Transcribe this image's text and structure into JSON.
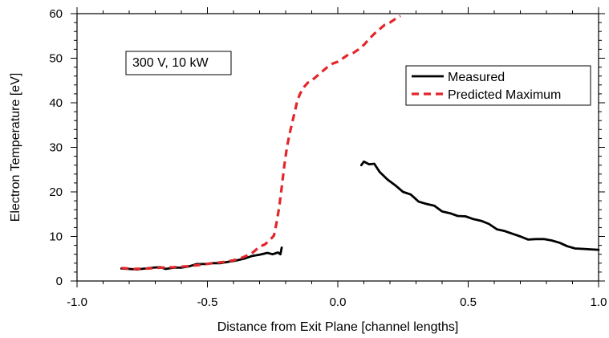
{
  "chart_data": {
    "type": "line",
    "title": "",
    "xlabel": "Distance from Exit Plane [channel lengths]",
    "ylabel": "Electron Temperature [eV]",
    "xlim": [
      -1.0,
      1.0
    ],
    "ylim": [
      0,
      60
    ],
    "xticks": [
      -1.0,
      -0.5,
      0.0,
      0.5,
      1.0
    ],
    "xtick_labels": [
      "-1.0",
      "-0.5",
      "0.0",
      "0.5",
      "1.0"
    ],
    "yticks": [
      0,
      10,
      20,
      30,
      40,
      50,
      60
    ],
    "ytick_labels": [
      "0",
      "10",
      "20",
      "30",
      "40",
      "50",
      "60"
    ],
    "grid": false,
    "legend_position": "top-right",
    "annotation": "300 V, 10 kW",
    "series": [
      {
        "name": "Measured",
        "style": "solid",
        "color": "#000000",
        "segments": [
          {
            "x": [
              -0.83,
              -0.8,
              -0.77,
              -0.74,
              -0.71,
              -0.68,
              -0.66,
              -0.63,
              -0.6,
              -0.57,
              -0.54,
              -0.51,
              -0.48,
              -0.45,
              -0.42,
              -0.39,
              -0.36,
              -0.33,
              -0.3,
              -0.27,
              -0.25,
              -0.23,
              -0.22,
              -0.215
            ],
            "y": [
              2.8,
              2.7,
              2.6,
              2.8,
              3.0,
              3.1,
              2.7,
              3.0,
              3.0,
              3.3,
              3.8,
              3.8,
              4.0,
              4.0,
              4.3,
              4.6,
              5.0,
              5.6,
              5.9,
              6.3,
              6.0,
              6.4,
              6.0,
              7.5
            ]
          },
          {
            "x": [
              0.09,
              0.1,
              0.12,
              0.14,
              0.16,
              0.19,
              0.22,
              0.25,
              0.28,
              0.31,
              0.34,
              0.37,
              0.4,
              0.43,
              0.46,
              0.49,
              0.52,
              0.55,
              0.58,
              0.61,
              0.64,
              0.67,
              0.7,
              0.73,
              0.76,
              0.79,
              0.82,
              0.85,
              0.88,
              0.91,
              0.94,
              0.97,
              1.0
            ],
            "y": [
              26.0,
              26.8,
              26.2,
              26.3,
              24.5,
              22.8,
              21.5,
              20.0,
              19.4,
              17.8,
              17.3,
              16.9,
              15.6,
              15.2,
              14.6,
              14.5,
              13.9,
              13.5,
              12.8,
              11.6,
              11.2,
              10.6,
              10.0,
              9.3,
              9.4,
              9.4,
              9.1,
              8.6,
              7.8,
              7.3,
              7.2,
              7.1,
              7.0
            ]
          }
        ]
      },
      {
        "name": "Predicted Maximum",
        "style": "dashed",
        "color": "#e3262a",
        "segments": [
          {
            "x": [
              -0.83,
              -0.78,
              -0.73,
              -0.68,
              -0.63,
              -0.58,
              -0.53,
              -0.48,
              -0.43,
              -0.38,
              -0.33,
              -0.3,
              -0.28,
              -0.26,
              -0.245,
              -0.235,
              -0.225,
              -0.215,
              -0.205,
              -0.195,
              -0.185,
              -0.175,
              -0.165,
              -0.155,
              -0.145,
              -0.13,
              -0.115,
              -0.1,
              -0.08,
              -0.06,
              -0.04,
              -0.02,
              0.0,
              0.02,
              0.04,
              0.06,
              0.08,
              0.1,
              0.12,
              0.14,
              0.16,
              0.18,
              0.2,
              0.22,
              0.24
            ],
            "y": [
              2.9,
              2.7,
              2.8,
              3.0,
              3.1,
              3.3,
              3.6,
              4.0,
              4.3,
              4.9,
              6.2,
              7.7,
              8.2,
              9.2,
              10.2,
              13.0,
              16.5,
              21.0,
              26.0,
              30.0,
              33.0,
              35.5,
              38.0,
              40.5,
              42.0,
              43.5,
              44.5,
              45.0,
              46.0,
              47.0,
              48.0,
              48.8,
              49.2,
              50.0,
              50.8,
              51.2,
              52.0,
              53.0,
              54.3,
              55.5,
              56.5,
              57.5,
              58.0,
              58.8,
              59.5
            ]
          }
        ]
      }
    ]
  }
}
